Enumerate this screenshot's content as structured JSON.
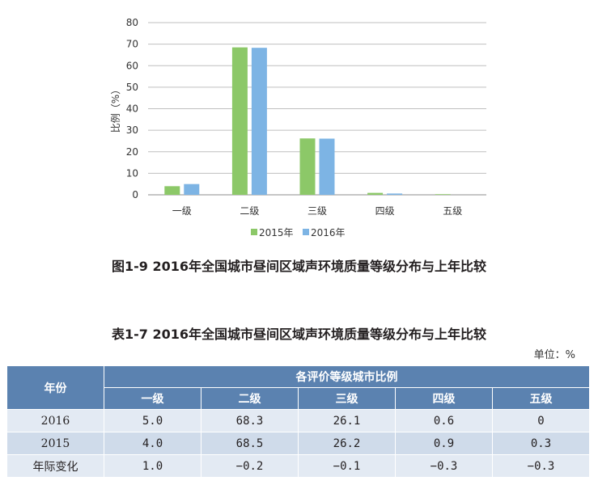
{
  "chart_data": {
    "type": "bar",
    "categories": [
      "一级",
      "二级",
      "三级",
      "四级",
      "五级"
    ],
    "series": [
      {
        "name": "2015年",
        "values": [
          4.0,
          68.5,
          26.2,
          0.9,
          0.3
        ],
        "color": "#8cc868"
      },
      {
        "name": "2016年",
        "values": [
          5.0,
          68.3,
          26.1,
          0.6,
          0.0
        ],
        "color": "#7db4e4"
      }
    ],
    "ylabel": "比例（%）",
    "ylim": [
      0,
      80
    ],
    "yticks": [
      0,
      10,
      20,
      30,
      40,
      50,
      60,
      70,
      80
    ],
    "grid": true,
    "legend": "bottom"
  },
  "figure_caption": "图1-9  2016年全国城市昼间区域声环境质量等级分布与上年比较",
  "table": {
    "caption": "表1-7  2016年全国城市昼间区域声环境质量等级分布与上年比较",
    "unit": "单位：%",
    "row_header": "年份",
    "group_header": "各评价等级城市比例",
    "columns": [
      "一级",
      "二级",
      "三级",
      "四级",
      "五级"
    ],
    "rows": [
      {
        "label": "2016",
        "values": [
          "5.0",
          "68.3",
          "26.1",
          "0.6",
          "0"
        ]
      },
      {
        "label": "2015",
        "values": [
          "4.0",
          "68.5",
          "26.2",
          "0.9",
          "0.3"
        ]
      },
      {
        "label": "年际变化",
        "values": [
          "1.0",
          "−0.2",
          "−0.1",
          "−0.3",
          "−0.3"
        ]
      }
    ]
  }
}
